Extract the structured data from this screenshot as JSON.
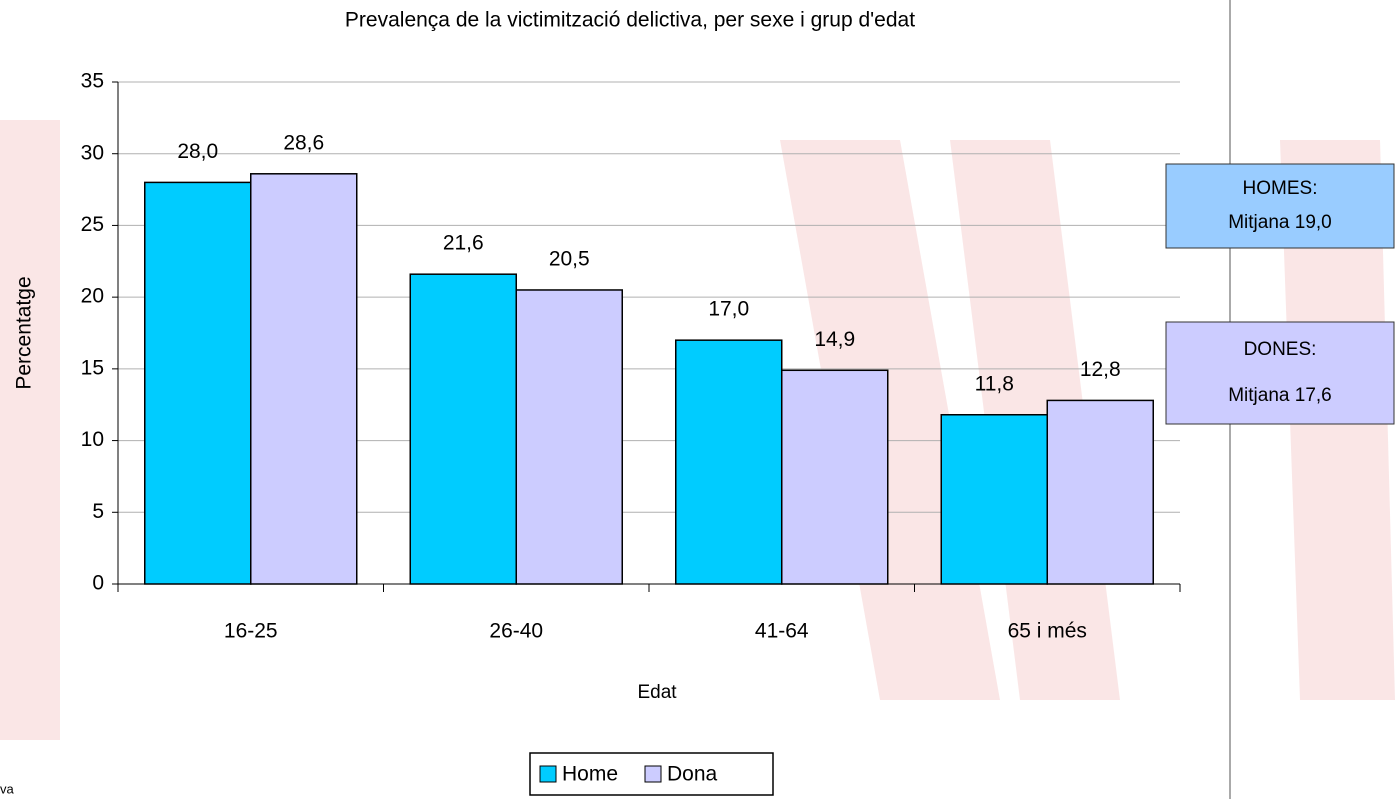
{
  "chart_data": {
    "type": "bar",
    "title": "Prevalença de la victimització delictiva, per sexe i grup d'edat",
    "xlabel": "Edat",
    "ylabel": "Percentatge",
    "categories": [
      "16-25",
      "26-40",
      "41-64",
      "65 i més"
    ],
    "series": [
      {
        "name": "Home",
        "color": "#00ccff",
        "values": [
          28.0,
          21.6,
          17.0,
          11.8
        ],
        "value_labels": [
          "28,0",
          "21,6",
          "17,0",
          "11,8"
        ]
      },
      {
        "name": "Dona",
        "color": "#ccccff",
        "values": [
          28.6,
          20.5,
          14.9,
          12.8
        ],
        "value_labels": [
          "28,6",
          "20,5",
          "14,9",
          "12,8"
        ]
      }
    ],
    "ylim": [
      0,
      35
    ],
    "yticks": [
      0,
      5,
      10,
      15,
      20,
      25,
      30,
      35
    ],
    "grid": true,
    "legend": "bottom",
    "annotations": [
      {
        "lines": [
          "HOMES:",
          "Mitjana 19,0"
        ],
        "color": "#99ccff"
      },
      {
        "lines": [
          "DONES:",
          "Mitjana 17,6"
        ],
        "color": "#ccccff"
      }
    ],
    "footnote": "va"
  }
}
